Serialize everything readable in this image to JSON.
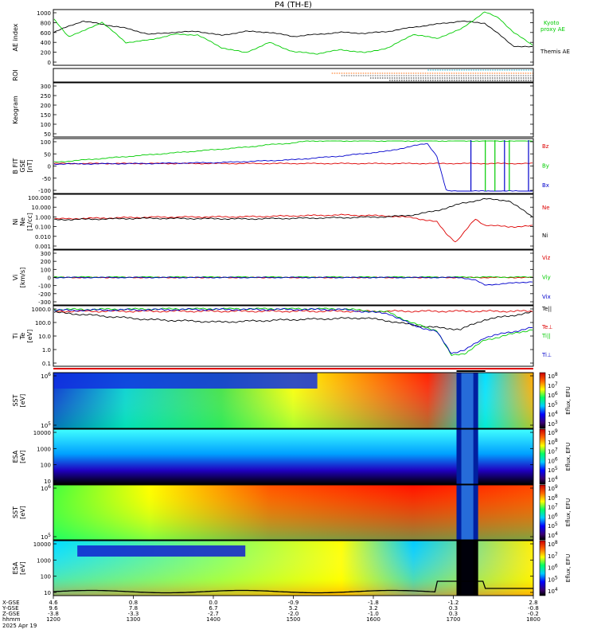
{
  "title": "P4 (TH-E)",
  "colors": {
    "black": "#000000",
    "green": "#00cc00",
    "red": "#dd0000",
    "blue": "#0000cc",
    "cyan": "#00aacc",
    "orange": "#ff6600"
  },
  "chart_data": [
    {
      "type": "line",
      "panel": "ae",
      "ylabel": "AE index",
      "ylim": [
        0,
        1000
      ],
      "yticks": [
        "1000",
        "800",
        "600",
        "400",
        "200",
        "0"
      ],
      "series": [
        {
          "name": "Themis AE",
          "color": "#000000",
          "x": [
            0,
            0.03,
            0.06,
            0.1,
            0.15,
            0.2,
            0.25,
            0.3,
            0.35,
            0.4,
            0.45,
            0.5,
            0.55,
            0.6,
            0.65,
            0.7,
            0.75,
            0.8,
            0.85,
            0.9,
            0.93,
            0.96,
            1.0
          ],
          "y": [
            600,
            720,
            820,
            760,
            680,
            560,
            600,
            620,
            540,
            620,
            600,
            520,
            560,
            600,
            580,
            620,
            700,
            760,
            820,
            780,
            560,
            330,
            310
          ]
        },
        {
          "name": "Kyoto proxy AE",
          "color": "#00cc00",
          "x": [
            0,
            0.03,
            0.06,
            0.1,
            0.15,
            0.2,
            0.25,
            0.3,
            0.35,
            0.4,
            0.45,
            0.5,
            0.55,
            0.6,
            0.65,
            0.7,
            0.75,
            0.8,
            0.85,
            0.9,
            0.93,
            0.96,
            1.0
          ],
          "y": [
            850,
            520,
            620,
            800,
            400,
            450,
            560,
            550,
            300,
            200,
            400,
            220,
            180,
            260,
            200,
            300,
            560,
            480,
            660,
            1000,
            880,
            600,
            350
          ]
        }
      ],
      "legend": [
        "Kyoto",
        "proxy AE",
        "Themis AE"
      ]
    },
    {
      "type": "line",
      "panel": "roi",
      "ylabel": "ROI"
    },
    {
      "type": "line",
      "panel": "keogram",
      "ylabel": "Keogram",
      "yticks": [
        "300",
        "250",
        "200",
        "150",
        "100",
        "50"
      ]
    },
    {
      "type": "line",
      "panel": "bfield",
      "ylabel_lines": [
        "B FIT",
        "GSE",
        "[nT]"
      ],
      "ylim": [
        -100,
        100
      ],
      "yticks": [
        "100",
        "50",
        "0",
        "-50",
        "-100"
      ],
      "series": [
        {
          "name": "Bz",
          "color": "#dd0000",
          "x": [
            0,
            1
          ],
          "y": [
            10,
            10
          ]
        },
        {
          "name": "By",
          "color": "#00cc00",
          "x": [
            0,
            0.1,
            0.2,
            0.3,
            0.4,
            0.45,
            0.5,
            0.53
          ],
          "y": [
            15,
            30,
            45,
            60,
            75,
            85,
            92,
            100
          ]
        },
        {
          "name": "Bx",
          "color": "#0000cc",
          "x": [
            0,
            0.2,
            0.35,
            0.5,
            0.6,
            0.7,
            0.75,
            0.78,
            0.8,
            0.82
          ],
          "y": [
            8,
            10,
            14,
            25,
            40,
            60,
            80,
            90,
            40,
            -100
          ]
        }
      ]
    },
    {
      "type": "line",
      "panel": "density",
      "ylabel_lines": [
        "Ni",
        "Ne",
        "[1/cc]"
      ],
      "yscale": "log",
      "ylim": [
        0.001,
        100
      ],
      "yticks": [
        "100.000",
        "10.000",
        "1.000",
        "0.100",
        "0.010",
        "0.001"
      ],
      "series": [
        {
          "name": "Ne",
          "color": "#dd0000",
          "x": [
            0,
            0.2,
            0.4,
            0.6,
            0.7,
            0.75,
            0.8,
            0.82,
            0.84,
            0.86,
            0.88,
            0.9,
            0.95,
            1.0
          ],
          "y": [
            0.6,
            0.9,
            1.0,
            1.5,
            1.2,
            0.8,
            0.3,
            0.02,
            0.003,
            0.04,
            0.6,
            0.15,
            0.1,
            0.12
          ]
        },
        {
          "name": "Ni",
          "color": "#000000",
          "x": [
            0,
            0.2,
            0.4,
            0.6,
            0.7,
            0.75,
            0.8,
            0.85,
            0.9,
            0.95,
            1.0
          ],
          "y": [
            0.5,
            0.7,
            0.6,
            0.8,
            1.0,
            1.5,
            4,
            20,
            60,
            40,
            1
          ]
        }
      ]
    },
    {
      "type": "line",
      "panel": "velocity",
      "ylabel_lines": [
        "Vi",
        "[km/s]"
      ],
      "ylim": [
        -300,
        300
      ],
      "yticks": [
        "300",
        "200",
        "100",
        "0",
        "-100",
        "-200",
        "-300"
      ],
      "series": [
        {
          "name": "Viz",
          "color": "#dd0000",
          "x": [
            0,
            1
          ],
          "y": [
            0,
            0
          ]
        },
        {
          "name": "Viy",
          "color": "#00cc00",
          "x": [
            0,
            1
          ],
          "y": [
            5,
            5
          ]
        },
        {
          "name": "Vix",
          "color": "#0000cc",
          "x": [
            0,
            0.85,
            0.88,
            0.9,
            1.0
          ],
          "y": [
            0,
            0,
            -30,
            -90,
            -50
          ]
        }
      ]
    },
    {
      "type": "line",
      "panel": "temperature",
      "ylabel_lines": [
        "Ti",
        "Te",
        "[eV]"
      ],
      "yscale": "log",
      "ylim": [
        0.1,
        1000
      ],
      "yticks": [
        "1000.0",
        "100.0",
        "10.0",
        "1.0",
        "0.1"
      ],
      "series": [
        {
          "name": "Te||",
          "color": "#000000",
          "x": [
            0,
            0.2,
            0.35,
            0.5,
            0.65,
            0.7,
            0.75,
            0.8,
            0.85,
            0.9,
            1.0
          ],
          "y": [
            500,
            150,
            100,
            150,
            200,
            120,
            60,
            40,
            30,
            150,
            500
          ]
        },
        {
          "name": "Te⊥",
          "color": "#dd0000",
          "x": [
            0,
            1
          ],
          "y": [
            600,
            600
          ]
        },
        {
          "name": "Ti||",
          "color": "#00cc00",
          "x": [
            0,
            0.3,
            0.6,
            0.7,
            0.75,
            0.8,
            0.83,
            0.86,
            0.9,
            1.0
          ],
          "y": [
            800,
            900,
            900,
            500,
            80,
            25,
            0.4,
            0.6,
            5,
            30
          ]
        },
        {
          "name": "Ti⊥",
          "color": "#0000cc",
          "x": [
            0,
            0.3,
            0.6,
            0.7,
            0.75,
            0.8,
            0.83,
            0.86,
            0.9,
            1.0
          ],
          "y": [
            700,
            800,
            800,
            400,
            60,
            20,
            0.6,
            1,
            8,
            40
          ]
        }
      ]
    },
    {
      "type": "heatmap",
      "panel": "sst_e",
      "ylabel_lines": [
        "SST",
        "[eV]"
      ],
      "yticks": [
        "10^6",
        "10^5"
      ],
      "colorbar_label": "Eflux, EFU",
      "colorbar_ticks": [
        "10^8",
        "10^7",
        "10^6",
        "10^5",
        "10^4",
        "10^3"
      ]
    },
    {
      "type": "heatmap",
      "panel": "esa_e",
      "ylabel_lines": [
        "ESA",
        "[eV]"
      ],
      "yticks": [
        "10000",
        "1000",
        "100",
        "10"
      ],
      "colorbar_label": "Eflux, EFU",
      "colorbar_ticks": [
        "10^9",
        "10^8",
        "10^7",
        "10^6",
        "10^5",
        "10^4"
      ]
    },
    {
      "type": "heatmap",
      "panel": "sst_i",
      "ylabel_lines": [
        "SST",
        "[eV]"
      ],
      "yticks": [
        "10^6",
        "10^5"
      ],
      "colorbar_label": "Eflux, EFU",
      "colorbar_ticks": [
        "10^9",
        "10^8",
        "10^7",
        "10^6",
        "10^5",
        "10^4"
      ]
    },
    {
      "type": "heatmap",
      "panel": "esa_i",
      "ylabel_lines": [
        "ESA",
        "[eV]"
      ],
      "yticks": [
        "10000",
        "1000",
        "100",
        "10"
      ],
      "colorbar_label": "Eflux, EFU",
      "colorbar_ticks": [
        "10^8",
        "10^7",
        "10^6",
        "10^5",
        "10^4"
      ]
    }
  ],
  "xaxis": {
    "rows": [
      "X-GSE",
      "Y-GSE",
      "Z-GSE",
      "hhmm",
      "2025 Apr 19"
    ],
    "ticks": [
      {
        "x": "4.6",
        "y": "9.6",
        "z": "-3.8",
        "t": "1200"
      },
      {
        "x": "0.8",
        "y": "7.8",
        "z": "-3.3",
        "t": "1300"
      },
      {
        "x": "0.0",
        "y": "6.7",
        "z": "-2.7",
        "t": "1400"
      },
      {
        "x": "-0.9",
        "y": "5.2",
        "z": "-2.0",
        "t": "1500"
      },
      {
        "x": "-1.8",
        "y": "3.2",
        "z": "-1.0",
        "t": "1600"
      },
      {
        "x": "-1.2",
        "y": "0.3",
        "z": "0.3",
        "t": "1700"
      },
      {
        "x": "2.8",
        "y": "-0.8",
        "z": "-0.2",
        "t": "1800"
      }
    ]
  }
}
